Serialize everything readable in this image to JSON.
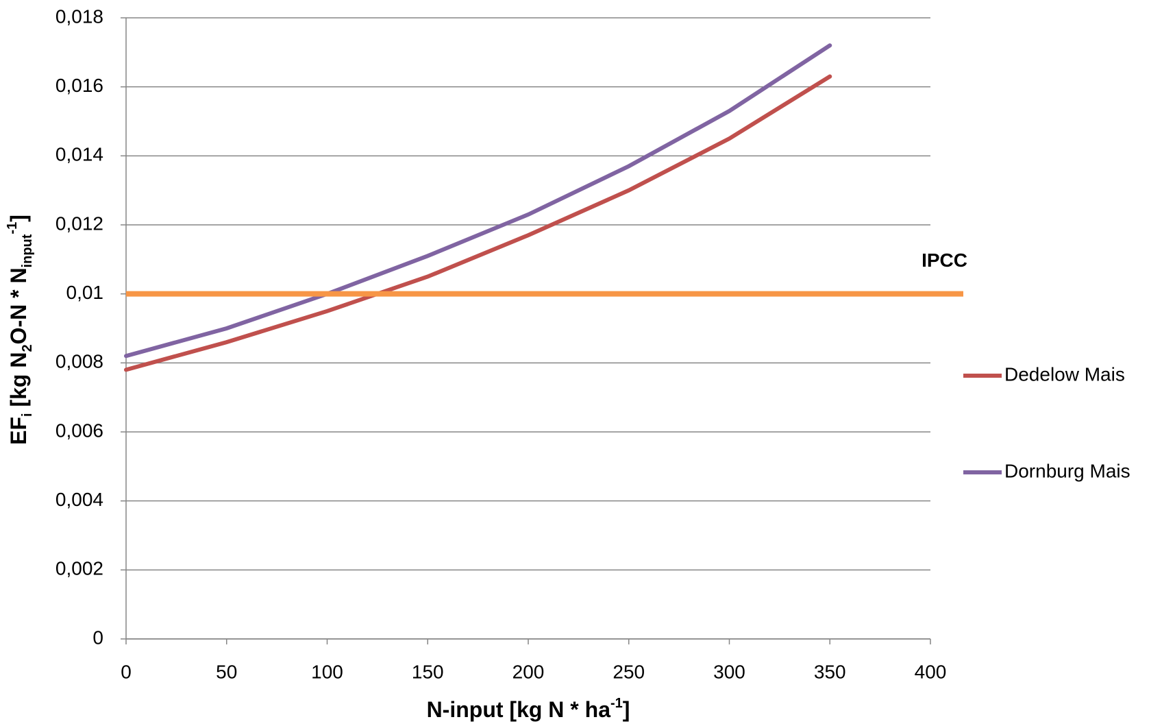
{
  "chart_data": {
    "type": "line",
    "x_label": [
      "N-input [kg N * ha",
      "-1",
      "]"
    ],
    "y_label": [
      "EF",
      "i",
      " [kg N",
      "2",
      "O-N * N",
      "input",
      "-1",
      "]"
    ],
    "x": [
      0,
      50,
      100,
      150,
      200,
      250,
      300,
      350
    ],
    "series": [
      {
        "name": "Dedelow Mais",
        "color": "#c0504d",
        "values": [
          0.0078,
          0.0086,
          0.0095,
          0.0105,
          0.0117,
          0.013,
          0.0145,
          0.0163
        ]
      },
      {
        "name": "Dornburg Mais",
        "color": "#8064a2",
        "values": [
          0.0082,
          0.009,
          0.01,
          0.0111,
          0.0123,
          0.0137,
          0.0153,
          0.0172
        ]
      }
    ],
    "reference_line": {
      "label": "IPCC",
      "value": 0.01,
      "color": "#f79646"
    },
    "xlim": [
      0,
      400
    ],
    "xticks": [
      0,
      50,
      100,
      150,
      200,
      250,
      300,
      350,
      400
    ],
    "ylim": [
      0,
      0.018
    ],
    "yticks": [
      0,
      {
        "value": 0.002,
        "label": "0,002"
      },
      {
        "value": 0.004,
        "label": "0,004"
      },
      {
        "value": 0.006,
        "label": "0,006"
      },
      {
        "value": 0.008,
        "label": "0,008"
      },
      {
        "value": 0.01,
        "label": "0,01"
      },
      {
        "value": 0.012,
        "label": "0,012"
      },
      {
        "value": 0.014,
        "label": "0,014"
      },
      {
        "value": 0.016,
        "label": "0,016"
      },
      {
        "value": 0.018,
        "label": "0,018"
      }
    ],
    "grid": true,
    "legend": "right"
  }
}
